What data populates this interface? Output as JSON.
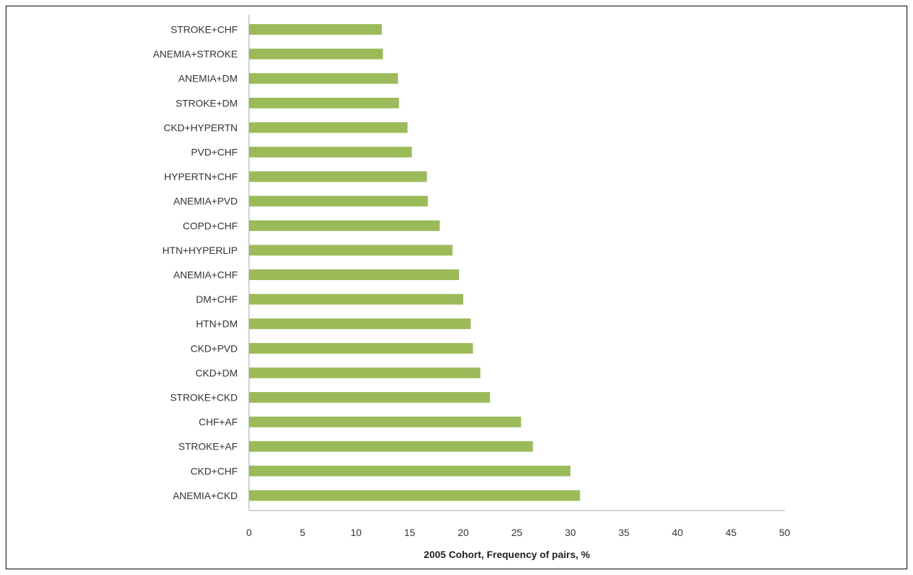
{
  "chart_data": {
    "type": "bar",
    "orientation": "horizontal",
    "categories": [
      "STROKE+CHF",
      "ANEMIA+STROKE",
      "ANEMIA+DM",
      "STROKE+DM",
      "CKD+HYPERTN",
      "PVD+CHF",
      "HYPERTN+CHF",
      "ANEMIA+PVD",
      "COPD+CHF",
      "HTN+HYPERLIP",
      "ANEMIA+CHF",
      "DM+CHF",
      "HTN+DM",
      "CKD+PVD",
      "CKD+DM",
      "STROKE+CKD",
      "CHF+AF",
      "STROKE+AF",
      "CKD+CHF",
      "ANEMIA+CKD"
    ],
    "values": [
      12.4,
      12.5,
      13.9,
      14.0,
      14.8,
      15.2,
      16.6,
      16.7,
      17.8,
      19.0,
      19.6,
      20.0,
      20.7,
      20.9,
      21.6,
      22.5,
      25.4,
      26.5,
      30.0,
      30.9
    ],
    "xlabel": "2005 Cohort,  Frequency of pairs, %",
    "xlim": [
      0,
      50
    ],
    "xticks": [
      "0",
      "5",
      "10",
      "15",
      "20",
      "25",
      "30",
      "35",
      "40",
      "45",
      "50"
    ],
    "bar_color": "#9BBB59",
    "axis_color": "#A6A6A6",
    "grid": false,
    "legend": "none"
  }
}
